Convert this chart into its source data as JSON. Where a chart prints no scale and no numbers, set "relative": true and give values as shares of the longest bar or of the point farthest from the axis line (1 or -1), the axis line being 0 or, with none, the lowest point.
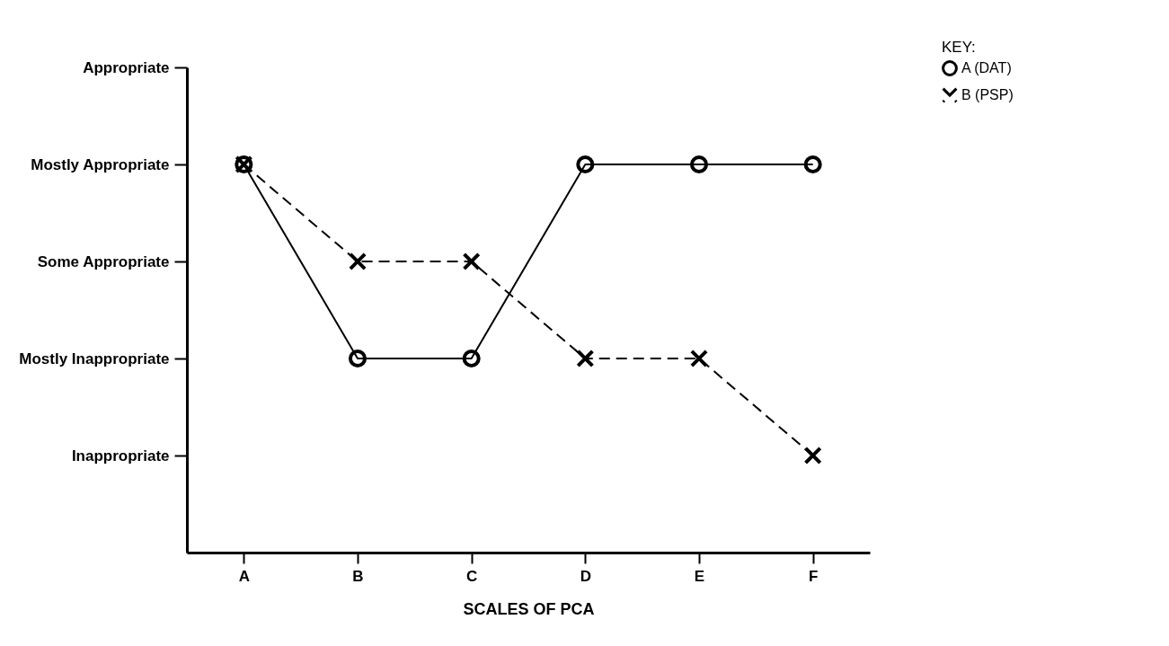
{
  "chart_data": {
    "type": "line",
    "xlabel": "SCALES OF PCA",
    "legend_title": "KEY:",
    "legend": "top right",
    "relative": true,
    "categories": [
      "A",
      "B",
      "C",
      "D",
      "E",
      "F"
    ],
    "series": [
      {
        "name": "A (DAT)",
        "color": "#000000",
        "marker": "circle",
        "line_style": "solid",
        "values": [
          1,
          0.5,
          0.5,
          1,
          1,
          1
        ]
      },
      {
        "name": "B (PSP)",
        "color": "#000000",
        "marker": "cross",
        "line_style": "dashed",
        "values": [
          1,
          0.75,
          0.75,
          0.5,
          0.5,
          0.25
        ]
      }
    ],
    "annotations": [
      "Inappropriate",
      "Mostly Inappropriate",
      "Some Appropriate",
      "Mostly Appropriate",
      "Appropriate"
    ],
    "grid": false
  }
}
